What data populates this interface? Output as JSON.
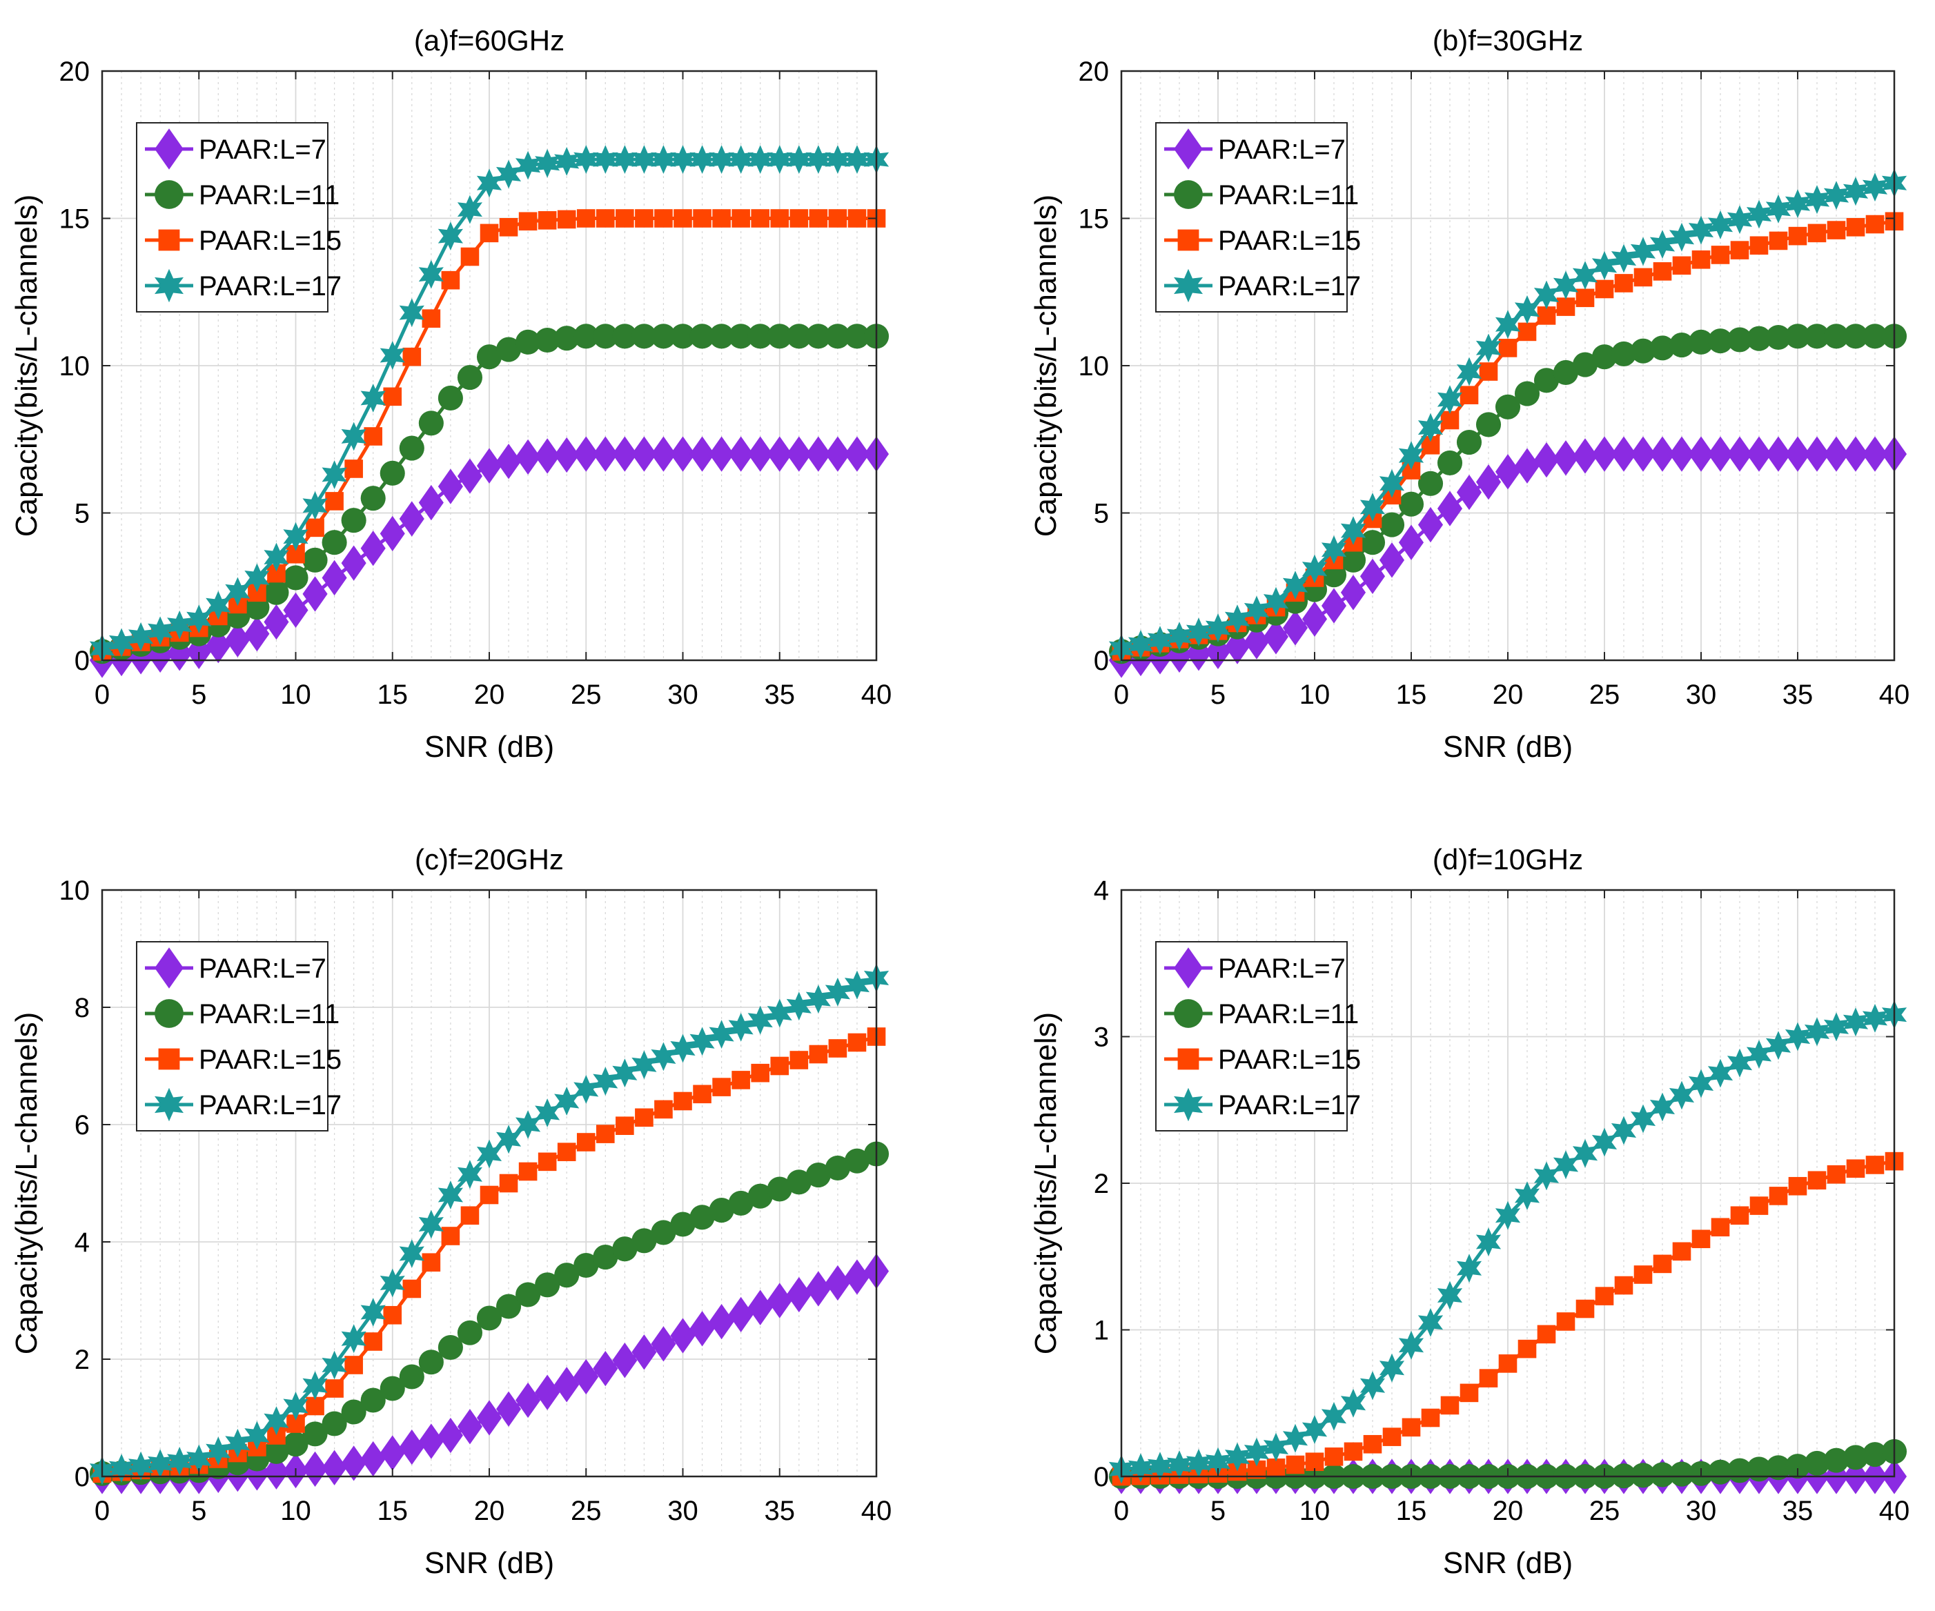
{
  "chart_data": [
    {
      "type": "line",
      "title": "(a)f=60GHz",
      "xlabel": "SNR (dB)",
      "ylabel": "Capacity(bits/L-channels)",
      "xlim": [
        0,
        40
      ],
      "ylim": [
        0,
        20
      ],
      "xticks": [
        0,
        5,
        10,
        15,
        20,
        25,
        30,
        35,
        40
      ],
      "yticks": [
        0,
        5,
        10,
        15,
        20
      ],
      "grid": true,
      "legend_position": "top-left",
      "series": [
        {
          "name": "PAAR:L=7",
          "color": "#8b2be2",
          "marker": "diamond",
          "points": [
            [
              0,
              0
            ],
            [
              5,
              0.3
            ],
            [
              8,
              0.9
            ],
            [
              10,
              1.7
            ],
            [
              12,
              2.8
            ],
            [
              14,
              3.8
            ],
            [
              16,
              4.8
            ],
            [
              18,
              5.9
            ],
            [
              20,
              6.6
            ],
            [
              22,
              6.9
            ],
            [
              25,
              7.0
            ],
            [
              30,
              7.0
            ],
            [
              35,
              7.0
            ],
            [
              40,
              7.0
            ]
          ]
        },
        {
          "name": "PAAR:L=11",
          "color": "#2e7d2e",
          "marker": "circle",
          "points": [
            [
              0,
              0.3
            ],
            [
              5,
              0.9
            ],
            [
              8,
              1.8
            ],
            [
              10,
              2.8
            ],
            [
              12,
              4.0
            ],
            [
              14,
              5.5
            ],
            [
              16,
              7.2
            ],
            [
              18,
              8.9
            ],
            [
              20,
              10.3
            ],
            [
              22,
              10.8
            ],
            [
              25,
              11.0
            ],
            [
              30,
              11.0
            ],
            [
              35,
              11.0
            ],
            [
              40,
              11.0
            ]
          ]
        },
        {
          "name": "PAAR:L=15",
          "color": "#ff4500",
          "marker": "square",
          "points": [
            [
              0,
              0.3
            ],
            [
              5,
              1.1
            ],
            [
              8,
              2.3
            ],
            [
              10,
              3.6
            ],
            [
              12,
              5.4
            ],
            [
              14,
              7.6
            ],
            [
              16,
              10.3
            ],
            [
              18,
              12.9
            ],
            [
              20,
              14.5
            ],
            [
              22,
              14.9
            ],
            [
              25,
              15.0
            ],
            [
              30,
              15.0
            ],
            [
              35,
              15.0
            ],
            [
              40,
              15.0
            ]
          ]
        },
        {
          "name": "PAAR:L=17",
          "color": "#1c9a9a",
          "marker": "hexagram",
          "points": [
            [
              0,
              0.4
            ],
            [
              5,
              1.4
            ],
            [
              8,
              2.8
            ],
            [
              10,
              4.2
            ],
            [
              12,
              6.3
            ],
            [
              14,
              8.9
            ],
            [
              16,
              11.8
            ],
            [
              18,
              14.4
            ],
            [
              20,
              16.2
            ],
            [
              22,
              16.8
            ],
            [
              25,
              17.0
            ],
            [
              30,
              17.0
            ],
            [
              35,
              17.0
            ],
            [
              40,
              17.0
            ]
          ]
        }
      ]
    },
    {
      "type": "line",
      "title": "(b)f=30GHz",
      "xlabel": "SNR (dB)",
      "ylabel": "Capacity(bits/L-channels)",
      "xlim": [
        0,
        40
      ],
      "ylim": [
        0,
        20
      ],
      "xticks": [
        0,
        5,
        10,
        15,
        20,
        25,
        30,
        35,
        40
      ],
      "yticks": [
        0,
        5,
        10,
        15,
        20
      ],
      "grid": true,
      "legend_position": "top-left",
      "series": [
        {
          "name": "PAAR:L=7",
          "color": "#8b2be2",
          "marker": "diamond",
          "points": [
            [
              0,
              0
            ],
            [
              5,
              0.3
            ],
            [
              8,
              0.8
            ],
            [
              10,
              1.4
            ],
            [
              12,
              2.3
            ],
            [
              14,
              3.4
            ],
            [
              16,
              4.6
            ],
            [
              18,
              5.7
            ],
            [
              20,
              6.4
            ],
            [
              22,
              6.8
            ],
            [
              25,
              7.0
            ],
            [
              30,
              7.0
            ],
            [
              35,
              7.0
            ],
            [
              40,
              7.0
            ]
          ]
        },
        {
          "name": "PAAR:L=11",
          "color": "#2e7d2e",
          "marker": "circle",
          "points": [
            [
              0,
              0.3
            ],
            [
              5,
              0.9
            ],
            [
              8,
              1.6
            ],
            [
              10,
              2.4
            ],
            [
              12,
              3.4
            ],
            [
              14,
              4.6
            ],
            [
              16,
              6.0
            ],
            [
              18,
              7.4
            ],
            [
              20,
              8.6
            ],
            [
              22,
              9.5
            ],
            [
              25,
              10.3
            ],
            [
              30,
              10.8
            ],
            [
              35,
              11.0
            ],
            [
              40,
              11.0
            ]
          ]
        },
        {
          "name": "PAAR:L=15",
          "color": "#ff4500",
          "marker": "square",
          "points": [
            [
              0,
              0.3
            ],
            [
              5,
              1.0
            ],
            [
              8,
              1.8
            ],
            [
              10,
              2.8
            ],
            [
              12,
              4.0
            ],
            [
              14,
              5.6
            ],
            [
              16,
              7.3
            ],
            [
              18,
              9.0
            ],
            [
              20,
              10.6
            ],
            [
              22,
              11.7
            ],
            [
              25,
              12.6
            ],
            [
              30,
              13.6
            ],
            [
              35,
              14.4
            ],
            [
              40,
              14.9
            ]
          ]
        },
        {
          "name": "PAAR:L=17",
          "color": "#1c9a9a",
          "marker": "hexagram",
          "points": [
            [
              0,
              0.4
            ],
            [
              5,
              1.1
            ],
            [
              8,
              2.0
            ],
            [
              10,
              3.1
            ],
            [
              12,
              4.4
            ],
            [
              14,
              6.0
            ],
            [
              16,
              7.9
            ],
            [
              18,
              9.8
            ],
            [
              20,
              11.4
            ],
            [
              22,
              12.4
            ],
            [
              25,
              13.4
            ],
            [
              30,
              14.6
            ],
            [
              35,
              15.5
            ],
            [
              40,
              16.2
            ]
          ]
        }
      ]
    },
    {
      "type": "line",
      "title": "(c)f=20GHz",
      "xlabel": "SNR (dB)",
      "ylabel": "Capacity(bits/L-channels)",
      "xlim": [
        0,
        40
      ],
      "ylim": [
        0,
        10
      ],
      "xticks": [
        0,
        5,
        10,
        15,
        20,
        25,
        30,
        35,
        40
      ],
      "yticks": [
        0,
        2,
        4,
        6,
        8,
        10
      ],
      "grid": true,
      "legend_position": "top-left",
      "series": [
        {
          "name": "PAAR:L=7",
          "color": "#8b2be2",
          "marker": "diamond",
          "points": [
            [
              0,
              0
            ],
            [
              5,
              0
            ],
            [
              10,
              0.1
            ],
            [
              12,
              0.15
            ],
            [
              14,
              0.3
            ],
            [
              16,
              0.5
            ],
            [
              18,
              0.7
            ],
            [
              20,
              1.0
            ],
            [
              22,
              1.3
            ],
            [
              25,
              1.7
            ],
            [
              30,
              2.4
            ],
            [
              35,
              3.0
            ],
            [
              40,
              3.5
            ]
          ]
        },
        {
          "name": "PAAR:L=11",
          "color": "#2e7d2e",
          "marker": "circle",
          "points": [
            [
              0,
              0.05
            ],
            [
              5,
              0.1
            ],
            [
              8,
              0.3
            ],
            [
              10,
              0.55
            ],
            [
              12,
              0.9
            ],
            [
              14,
              1.3
            ],
            [
              16,
              1.7
            ],
            [
              18,
              2.2
            ],
            [
              20,
              2.7
            ],
            [
              22,
              3.1
            ],
            [
              25,
              3.6
            ],
            [
              30,
              4.3
            ],
            [
              35,
              4.9
            ],
            [
              40,
              5.5
            ]
          ]
        },
        {
          "name": "PAAR:L=15",
          "color": "#ff4500",
          "marker": "square",
          "points": [
            [
              0,
              0.05
            ],
            [
              5,
              0.2
            ],
            [
              8,
              0.5
            ],
            [
              10,
              0.9
            ],
            [
              12,
              1.5
            ],
            [
              14,
              2.3
            ],
            [
              16,
              3.2
            ],
            [
              18,
              4.1
            ],
            [
              20,
              4.8
            ],
            [
              22,
              5.2
            ],
            [
              25,
              5.7
            ],
            [
              30,
              6.4
            ],
            [
              35,
              7.0
            ],
            [
              40,
              7.5
            ]
          ]
        },
        {
          "name": "PAAR:L=17",
          "color": "#1c9a9a",
          "marker": "hexagram",
          "points": [
            [
              0,
              0.1
            ],
            [
              5,
              0.3
            ],
            [
              8,
              0.7
            ],
            [
              10,
              1.2
            ],
            [
              12,
              1.9
            ],
            [
              14,
              2.8
            ],
            [
              16,
              3.8
            ],
            [
              18,
              4.8
            ],
            [
              20,
              5.5
            ],
            [
              22,
              6.0
            ],
            [
              25,
              6.6
            ],
            [
              30,
              7.3
            ],
            [
              35,
              7.9
            ],
            [
              40,
              8.5
            ]
          ]
        }
      ]
    },
    {
      "type": "line",
      "title": "(d)f=10GHz",
      "xlabel": "SNR (dB)",
      "ylabel": "Capacity(bits/L-channels)",
      "xlim": [
        0,
        40
      ],
      "ylim": [
        0,
        4
      ],
      "xticks": [
        0,
        5,
        10,
        15,
        20,
        25,
        30,
        35,
        40
      ],
      "yticks": [
        0,
        1,
        2,
        3,
        4
      ],
      "grid": true,
      "legend_position": "top-left",
      "series": [
        {
          "name": "PAAR:L=7",
          "color": "#8b2be2",
          "marker": "diamond",
          "points": [
            [
              0,
              0
            ],
            [
              10,
              0
            ],
            [
              20,
              0
            ],
            [
              30,
              0
            ],
            [
              40,
              0
            ]
          ]
        },
        {
          "name": "PAAR:L=11",
          "color": "#2e7d2e",
          "marker": "circle",
          "points": [
            [
              0,
              0
            ],
            [
              10,
              0
            ],
            [
              20,
              0
            ],
            [
              25,
              0
            ],
            [
              30,
              0.02
            ],
            [
              35,
              0.07
            ],
            [
              40,
              0.17
            ]
          ]
        },
        {
          "name": "PAAR:L=15",
          "color": "#ff4500",
          "marker": "square",
          "points": [
            [
              0,
              0
            ],
            [
              5,
              0.02
            ],
            [
              8,
              0.06
            ],
            [
              10,
              0.1
            ],
            [
              12,
              0.17
            ],
            [
              14,
              0.27
            ],
            [
              16,
              0.4
            ],
            [
              18,
              0.57
            ],
            [
              20,
              0.77
            ],
            [
              22,
              0.97
            ],
            [
              25,
              1.23
            ],
            [
              28,
              1.45
            ],
            [
              30,
              1.62
            ],
            [
              32,
              1.78
            ],
            [
              35,
              1.98
            ],
            [
              38,
              2.1
            ],
            [
              40,
              2.15
            ]
          ]
        },
        {
          "name": "PAAR:L=17",
          "color": "#1c9a9a",
          "marker": "hexagram",
          "points": [
            [
              0,
              0.05
            ],
            [
              5,
              0.1
            ],
            [
              8,
              0.2
            ],
            [
              10,
              0.32
            ],
            [
              12,
              0.5
            ],
            [
              14,
              0.74
            ],
            [
              16,
              1.05
            ],
            [
              18,
              1.42
            ],
            [
              20,
              1.78
            ],
            [
              22,
              2.05
            ],
            [
              25,
              2.28
            ],
            [
              28,
              2.52
            ],
            [
              30,
              2.68
            ],
            [
              32,
              2.82
            ],
            [
              35,
              3.0
            ],
            [
              38,
              3.1
            ],
            [
              40,
              3.15
            ]
          ]
        }
      ]
    }
  ]
}
